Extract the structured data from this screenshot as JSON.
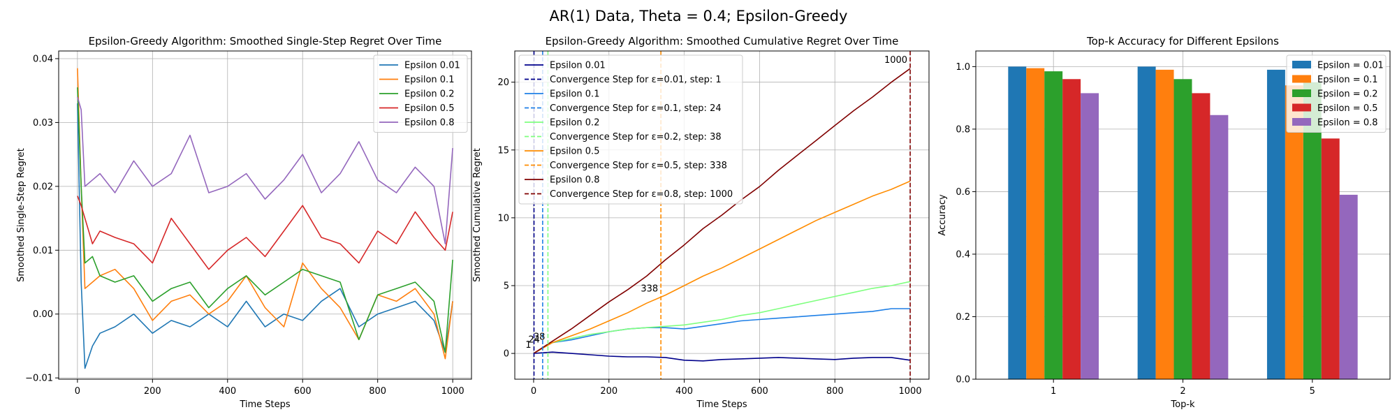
{
  "figure": {
    "title": "AR(1) Data, Theta = 0.4; Epsilon-Greedy"
  },
  "chart_data": [
    {
      "type": "line",
      "title": "Epsilon-Greedy Algorithm: Smoothed Single-Step Regret Over Time",
      "xlabel": "Time Steps",
      "ylabel": "Smoothed Single-Step Regret",
      "xlim": [
        -50,
        1050
      ],
      "ylim": [
        -0.0102,
        0.0412
      ],
      "xticks": [
        0,
        200,
        400,
        600,
        800,
        1000
      ],
      "yticks": [
        -0.01,
        0.0,
        0.01,
        0.02,
        0.03,
        0.04
      ],
      "ytick_labels": [
        "−0.01",
        "0.00",
        "0.01",
        "0.02",
        "0.03",
        "0.04"
      ],
      "grid": true,
      "legend_position": "upper right",
      "series": [
        {
          "name": "Epsilon 0.01",
          "color": "#1f77b4",
          "x": [
            0,
            10,
            20,
            40,
            60,
            100,
            150,
            200,
            250,
            300,
            350,
            400,
            450,
            500,
            550,
            600,
            650,
            700,
            750,
            800,
            850,
            900,
            950,
            980,
            1000
          ],
          "y": [
            0.033,
            0.005,
            -0.0085,
            -0.005,
            -0.003,
            -0.002,
            0.0,
            -0.003,
            -0.001,
            -0.002,
            0.0,
            -0.002,
            0.002,
            -0.002,
            0.0,
            -0.001,
            0.002,
            0.004,
            -0.002,
            0.0,
            0.001,
            0.002,
            -0.001,
            -0.006,
            0.002
          ]
        },
        {
          "name": "Epsilon 0.1",
          "color": "#ff7f0e",
          "x": [
            0,
            10,
            20,
            40,
            60,
            100,
            150,
            200,
            250,
            300,
            350,
            400,
            450,
            500,
            550,
            600,
            650,
            700,
            750,
            800,
            850,
            900,
            950,
            980,
            1000
          ],
          "y": [
            0.0385,
            0.02,
            0.004,
            0.005,
            0.006,
            0.007,
            0.004,
            -0.001,
            0.002,
            0.003,
            0.0,
            0.002,
            0.006,
            0.001,
            -0.002,
            0.008,
            0.004,
            0.001,
            -0.004,
            0.003,
            0.002,
            0.004,
            0.0,
            -0.007,
            0.002
          ]
        },
        {
          "name": "Epsilon 0.2",
          "color": "#2ca02c",
          "x": [
            0,
            10,
            20,
            40,
            60,
            100,
            150,
            200,
            250,
            300,
            350,
            400,
            450,
            500,
            550,
            600,
            650,
            700,
            750,
            800,
            850,
            900,
            950,
            980,
            1000
          ],
          "y": [
            0.0355,
            0.02,
            0.008,
            0.009,
            0.006,
            0.005,
            0.006,
            0.002,
            0.004,
            0.005,
            0.001,
            0.004,
            0.006,
            0.003,
            0.005,
            0.007,
            0.006,
            0.005,
            -0.004,
            0.003,
            0.004,
            0.005,
            0.002,
            -0.006,
            0.0085
          ]
        },
        {
          "name": "Epsilon 0.5",
          "color": "#d62728",
          "x": [
            0,
            10,
            20,
            40,
            60,
            100,
            150,
            200,
            250,
            300,
            350,
            400,
            450,
            500,
            550,
            600,
            650,
            700,
            750,
            800,
            850,
            900,
            950,
            980,
            1000
          ],
          "y": [
            0.0185,
            0.017,
            0.015,
            0.011,
            0.013,
            0.012,
            0.011,
            0.008,
            0.015,
            0.011,
            0.007,
            0.01,
            0.012,
            0.009,
            0.013,
            0.017,
            0.012,
            0.011,
            0.008,
            0.013,
            0.011,
            0.016,
            0.012,
            0.01,
            0.016
          ]
        },
        {
          "name": "Epsilon 0.8",
          "color": "#9467bd",
          "x": [
            0,
            10,
            20,
            40,
            60,
            100,
            150,
            200,
            250,
            300,
            350,
            400,
            450,
            500,
            550,
            600,
            650,
            700,
            750,
            800,
            850,
            900,
            950,
            980,
            1000
          ],
          "y": [
            0.034,
            0.032,
            0.02,
            0.021,
            0.022,
            0.019,
            0.024,
            0.02,
            0.022,
            0.028,
            0.019,
            0.02,
            0.022,
            0.018,
            0.021,
            0.025,
            0.019,
            0.022,
            0.027,
            0.021,
            0.019,
            0.023,
            0.02,
            0.011,
            0.026
          ]
        }
      ]
    },
    {
      "type": "line",
      "title": "Epsilon-Greedy Algorithm: Smoothed Cumulative Regret Over Time",
      "xlabel": "Time Steps",
      "ylabel": "Smoothed Cumulative Regret",
      "xlim": [
        -50,
        1050
      ],
      "ylim": [
        -1.9,
        22.3
      ],
      "xticks": [
        0,
        200,
        400,
        600,
        800,
        1000
      ],
      "yticks": [
        0,
        5,
        10,
        15,
        20
      ],
      "grid": true,
      "legend_position": "upper left",
      "series": [
        {
          "name": "Epsilon 0.01",
          "color": "#00008b",
          "x": [
            0,
            50,
            100,
            150,
            200,
            250,
            300,
            350,
            400,
            450,
            500,
            550,
            600,
            650,
            700,
            750,
            800,
            850,
            900,
            950,
            1000
          ],
          "y": [
            0,
            0.1,
            0.0,
            -0.1,
            -0.2,
            -0.25,
            -0.25,
            -0.3,
            -0.5,
            -0.55,
            -0.45,
            -0.4,
            -0.35,
            -0.3,
            -0.35,
            -0.4,
            -0.45,
            -0.35,
            -0.3,
            -0.3,
            -0.5
          ]
        },
        {
          "name": "Epsilon 0.1",
          "color": "#1e7fe6",
          "x": [
            0,
            50,
            100,
            150,
            200,
            250,
            300,
            350,
            400,
            450,
            500,
            550,
            600,
            650,
            700,
            750,
            800,
            850,
            900,
            950,
            1000
          ],
          "y": [
            0,
            0.8,
            1.0,
            1.3,
            1.6,
            1.8,
            1.9,
            1.9,
            1.8,
            2.0,
            2.2,
            2.4,
            2.5,
            2.6,
            2.7,
            2.8,
            2.9,
            3.0,
            3.1,
            3.3,
            3.3
          ]
        },
        {
          "name": "Epsilon 0.2",
          "color": "#7fff7f",
          "x": [
            0,
            50,
            100,
            150,
            200,
            250,
            300,
            350,
            400,
            450,
            500,
            550,
            600,
            650,
            700,
            750,
            800,
            850,
            900,
            950,
            1000
          ],
          "y": [
            0,
            0.8,
            1.1,
            1.4,
            1.6,
            1.8,
            1.9,
            2.0,
            2.1,
            2.3,
            2.5,
            2.8,
            3.0,
            3.3,
            3.6,
            3.9,
            4.2,
            4.5,
            4.8,
            5.0,
            5.3
          ]
        },
        {
          "name": "Epsilon 0.5",
          "color": "#ff8c00",
          "x": [
            0,
            50,
            100,
            150,
            200,
            250,
            300,
            350,
            400,
            450,
            500,
            550,
            600,
            650,
            700,
            750,
            800,
            850,
            900,
            950,
            1000
          ],
          "y": [
            0,
            0.8,
            1.3,
            1.8,
            2.4,
            3.0,
            3.7,
            4.3,
            5.0,
            5.7,
            6.3,
            7.0,
            7.7,
            8.4,
            9.1,
            9.8,
            10.4,
            11.0,
            11.6,
            12.1,
            12.7
          ]
        },
        {
          "name": "Epsilon 0.8",
          "color": "#800000",
          "x": [
            0,
            50,
            100,
            150,
            200,
            250,
            300,
            350,
            400,
            450,
            500,
            550,
            600,
            650,
            700,
            750,
            800,
            850,
            900,
            950,
            1000
          ],
          "y": [
            0,
            0.9,
            1.8,
            2.8,
            3.8,
            4.7,
            5.7,
            6.9,
            8.0,
            9.2,
            10.2,
            11.3,
            12.3,
            13.5,
            14.6,
            15.7,
            16.8,
            17.9,
            18.9,
            20.0,
            21.0
          ]
        }
      ],
      "convergence_lines": [
        {
          "name": "Convergence Step for ε=0.01, step: 1",
          "step": 1,
          "label": "1",
          "color": "#00008b"
        },
        {
          "name": "Convergence Step for ε=0.1, step: 24",
          "step": 24,
          "label": "24",
          "color": "#1e7fe6"
        },
        {
          "name": "Convergence Step for ε=0.2, step: 38",
          "step": 38,
          "label": "38",
          "color": "#7fff7f"
        },
        {
          "name": "Convergence Step for ε=0.5, step: 338",
          "step": 338,
          "label": "338",
          "color": "#ff8c00"
        },
        {
          "name": "Convergence Step for ε=0.8, step: 1000",
          "step": 1000,
          "label": "1000",
          "color": "#800000"
        }
      ]
    },
    {
      "type": "bar",
      "title": "Top-k Accuracy for Different Epsilons",
      "xlabel": "Top-k",
      "ylabel": "Accuracy",
      "categories": [
        "1",
        "2",
        "5"
      ],
      "ylim": [
        0,
        1.05
      ],
      "yticks": [
        0.0,
        0.2,
        0.4,
        0.6,
        0.8,
        1.0
      ],
      "ytick_labels": [
        "0.0",
        "0.2",
        "0.4",
        "0.6",
        "0.8",
        "1.0"
      ],
      "grid": true,
      "legend_position": "upper right",
      "series": [
        {
          "name": "Epsilon = 0.01",
          "color": "#1f77b4",
          "values": [
            1.0,
            1.0,
            0.99
          ]
        },
        {
          "name": "Epsilon = 0.1",
          "color": "#ff7f0e",
          "values": [
            0.995,
            0.99,
            0.94
          ]
        },
        {
          "name": "Epsilon = 0.2",
          "color": "#2ca02c",
          "values": [
            0.985,
            0.96,
            0.95
          ]
        },
        {
          "name": "Epsilon = 0.5",
          "color": "#d62728",
          "values": [
            0.96,
            0.915,
            0.77
          ]
        },
        {
          "name": "Epsilon = 0.8",
          "color": "#9467bd",
          "values": [
            0.915,
            0.845,
            0.59
          ]
        }
      ]
    }
  ]
}
